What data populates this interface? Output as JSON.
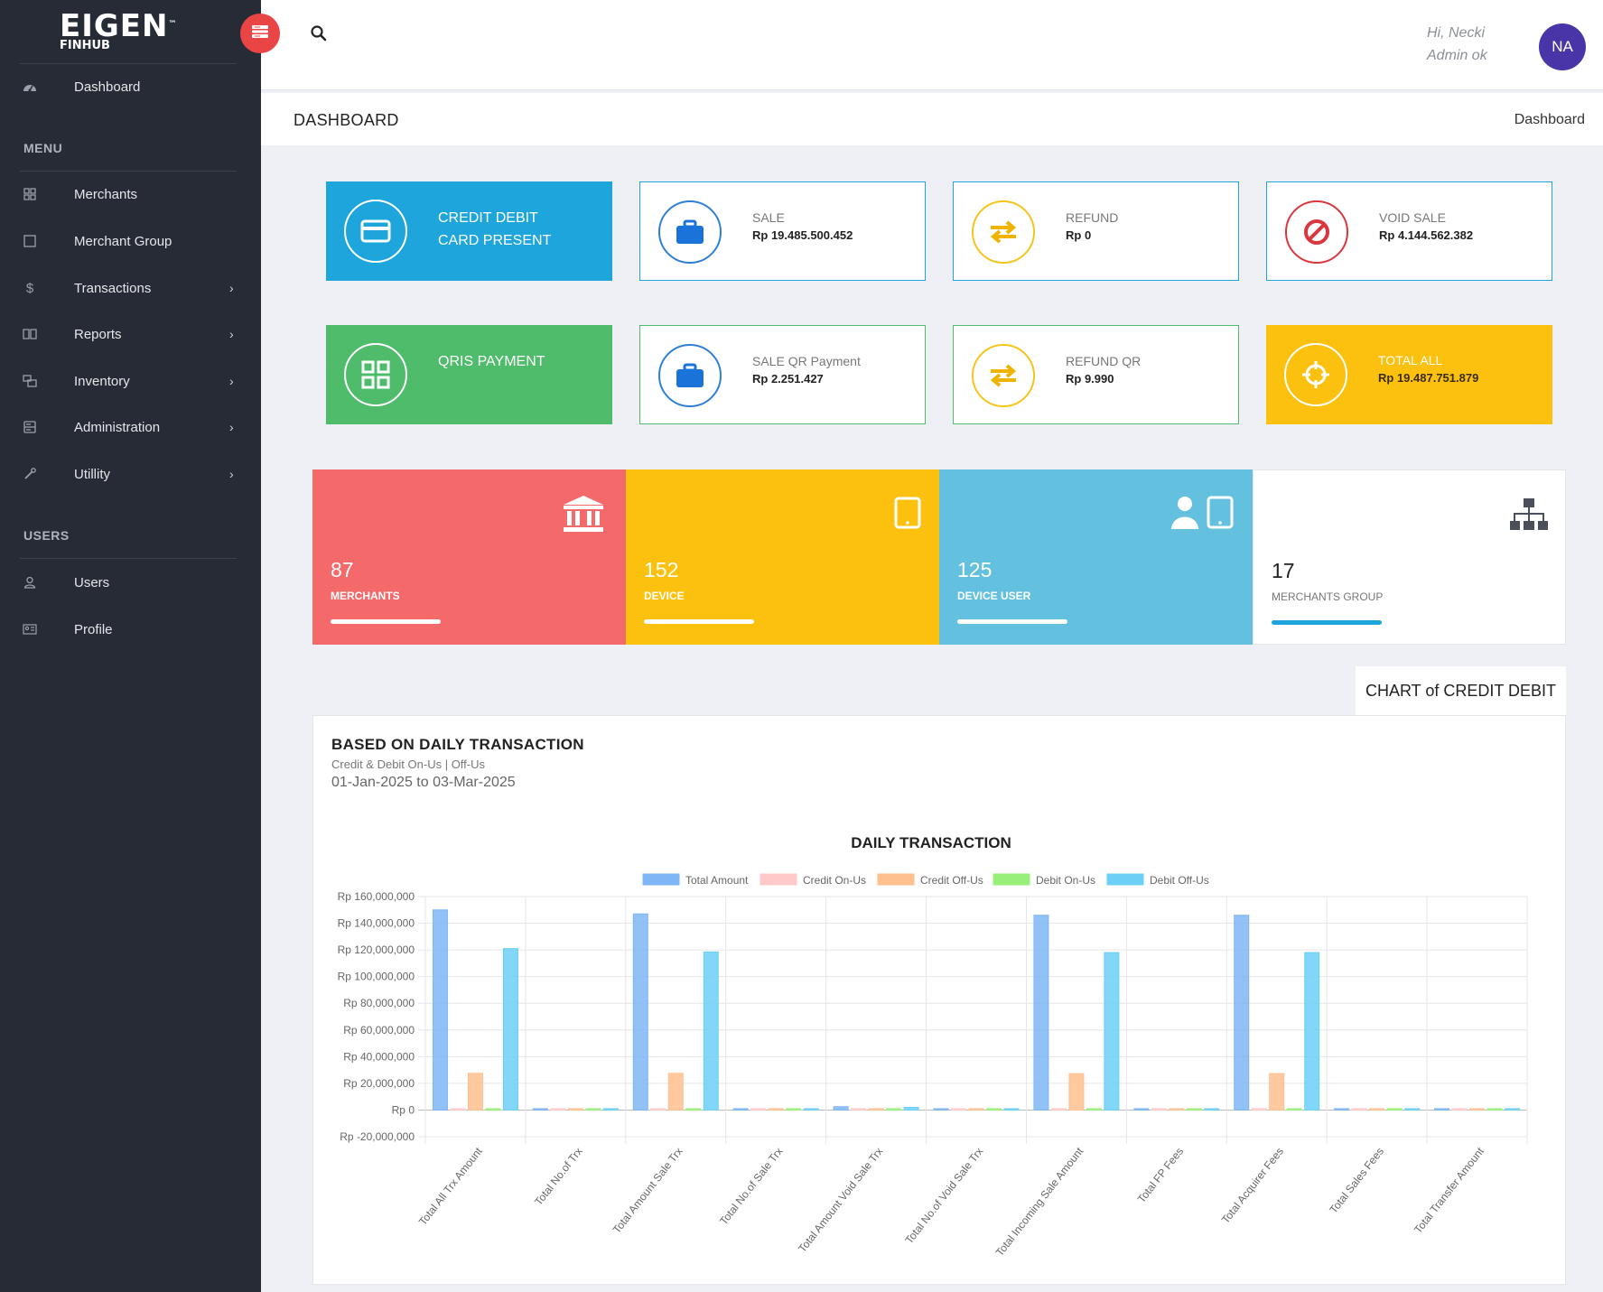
{
  "app": {
    "brand": "EIGEN",
    "brand_mark": "™",
    "brand_sub": "FINHUB"
  },
  "sidebar": {
    "dashboard_label": "Dashboard",
    "menu_title": "MENU",
    "items": [
      {
        "label": "Merchants",
        "icon": "grid-icon"
      },
      {
        "label": "Merchant Group",
        "icon": "square-icon"
      },
      {
        "label": "Transactions",
        "icon": "dollar-icon"
      },
      {
        "label": "Reports",
        "icon": "book-icon"
      },
      {
        "label": "Inventory",
        "icon": "boxes-icon"
      },
      {
        "label": "Administration",
        "icon": "server-icon"
      },
      {
        "label": "Utillity",
        "icon": "wrench-icon"
      }
    ],
    "users_title": "USERS",
    "user_items": [
      {
        "label": "Users",
        "icon": "user-icon"
      },
      {
        "label": "Profile",
        "icon": "id-card-icon"
      }
    ]
  },
  "topbar": {
    "greeting": "Hi, Necki",
    "role": "Admin ok",
    "avatar": "NA"
  },
  "page": {
    "title": "DASHBOARD",
    "breadcrumb": "Dashboard"
  },
  "tiles": {
    "credit_debit": {
      "line1": "CREDIT DEBIT",
      "line2": "CARD PRESENT"
    },
    "sale": {
      "label": "SALE",
      "value": "Rp 19.485.500.452"
    },
    "refund": {
      "label": "REFUND",
      "value": "Rp 0"
    },
    "void_sale": {
      "label": "VOID SALE",
      "value": "Rp 4.144.562.382"
    },
    "qris": {
      "label": "QRIS PAYMENT"
    },
    "sale_qr": {
      "label": "SALE QR Payment",
      "value": "Rp 2.251.427"
    },
    "refund_qr": {
      "label": "REFUND QR",
      "value": "Rp 9.990"
    },
    "total_all": {
      "label": "TOTAL ALL",
      "value": "Rp 19.487.751.879"
    }
  },
  "stats": [
    {
      "value": "87",
      "label": "MERCHANTS",
      "color": "#f46a6a"
    },
    {
      "value": "152",
      "label": "DEVICE",
      "color": "#fcc10f"
    },
    {
      "value": "125",
      "label": "DEVICE USER",
      "color": "#63c0de"
    },
    {
      "value": "17",
      "label": "MERCHANTS GROUP",
      "color": "#ffffff"
    }
  ],
  "chart_panel": {
    "tab": "CHART of CREDIT DEBIT",
    "heading": "BASED ON DAILY TRANSACTION",
    "subheading": "Credit & Debit On-Us | Off-Us",
    "date_range": "01-Jan-2025 to 03-Mar-2025"
  },
  "chart_data": {
    "type": "bar",
    "title": "DAILY TRANSACTION",
    "ylim": [
      -20000000,
      160000000
    ],
    "yticks": [
      "Rp 160,000,000",
      "Rp 140,000,000",
      "Rp 120,000,000",
      "Rp 100,000,000",
      "Rp 80,000,000",
      "Rp 60,000,000",
      "Rp 40,000,000",
      "Rp 20,000,000",
      "Rp 0",
      "Rp -20,000,000"
    ],
    "grid": true,
    "legend_position": "top",
    "categories": [
      "Total All Trx Amount",
      "Total No.of Trx",
      "Total Amount Sale Trx",
      "Total No.of Sale Trx",
      "Total Amount Void Sale Trx",
      "Total No.of Void Sale Trx",
      "Total Incoming Sale Amount",
      "Total FP Fees",
      "Total Acquirer Fees",
      "Total Sales Fees",
      "Total Transfer Amount"
    ],
    "series": [
      {
        "name": "Total Amount",
        "color": "#7fb6f5",
        "values": [
          150000000,
          450,
          147000000,
          400,
          2500000,
          50,
          146000000,
          0,
          146000000,
          0,
          0
        ]
      },
      {
        "name": "Credit On-Us",
        "color": "#ffc9c9",
        "values": [
          0,
          0,
          0,
          0,
          0,
          0,
          0,
          0,
          0,
          0,
          0
        ]
      },
      {
        "name": "Credit Off-Us",
        "color": "#ffc08f",
        "values": [
          27500000,
          50,
          27500000,
          50,
          0,
          0,
          27300000,
          0,
          27300000,
          0,
          0
        ]
      },
      {
        "name": "Debit On-Us",
        "color": "#98f07a",
        "values": [
          0,
          0,
          0,
          0,
          0,
          0,
          0,
          0,
          0,
          0,
          0
        ]
      },
      {
        "name": "Debit Off-Us",
        "color": "#6ccff6",
        "values": [
          121000000,
          350,
          118500000,
          300,
          2000000,
          40,
          118000000,
          0,
          118000000,
          0,
          0
        ]
      }
    ]
  }
}
